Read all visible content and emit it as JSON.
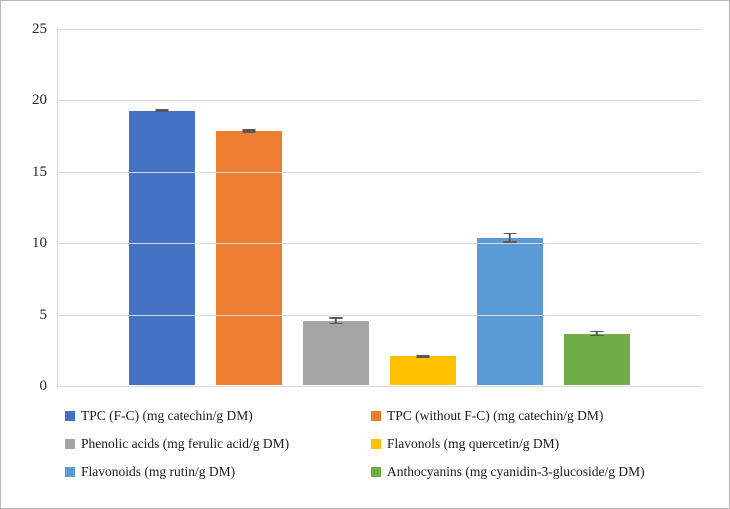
{
  "chart_data": {
    "type": "bar",
    "title": "",
    "xlabel": "",
    "ylabel": "",
    "ylim": [
      0,
      25
    ],
    "yticks": [
      0,
      5,
      10,
      15,
      20,
      25
    ],
    "grid": true,
    "legend_position": "bottom",
    "series": [
      {
        "label": "TPC (F-C) (mg catechin/g DM)",
        "value": 19.2,
        "error": 0.1,
        "color": "#4472C4"
      },
      {
        "label": "TPC (without F-C) (mg catechin/g DM)",
        "value": 17.8,
        "error": 0.12,
        "color": "#ED7D31"
      },
      {
        "label": "Phenolic acids (mg ferulic acid/g DM)",
        "value": 4.5,
        "error": 0.25,
        "color": "#A5A5A5"
      },
      {
        "label": "Flavonols (mg quercetin/g DM)",
        "value": 2.0,
        "error": 0.08,
        "color": "#FFC000"
      },
      {
        "label": "Flavonoids (mg rutin/g DM)",
        "value": 10.3,
        "error": 0.35,
        "color": "#5B9BD5"
      },
      {
        "label": "Anthocyanins (mg cyanidin-3-glucoside/g DM)",
        "value": 3.6,
        "error": 0.2,
        "color": "#70AD47"
      }
    ]
  },
  "colors": {
    "gridline": "#d9d9d9",
    "axis_text": "#262626",
    "error_bar": "#595959",
    "figure_border": "#b7b7b7",
    "background": "#ffffff"
  }
}
